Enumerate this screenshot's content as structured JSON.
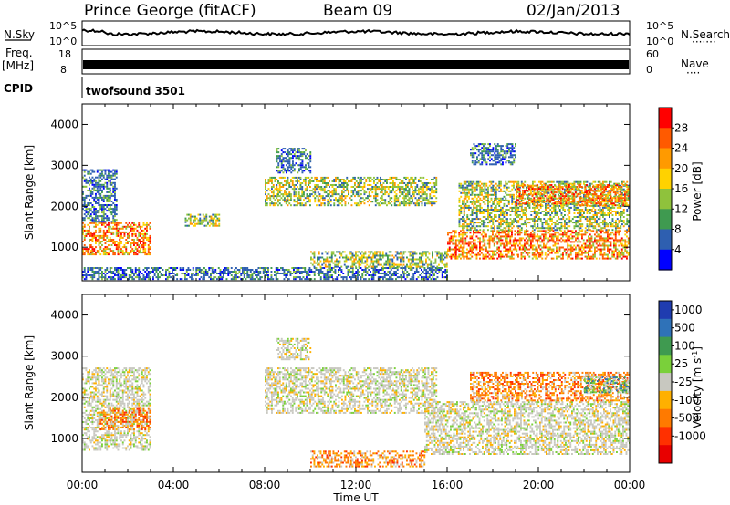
{
  "header": {
    "station": "Prince George (fitACF)",
    "beam": "Beam 09",
    "date": "02/Jan/2013"
  },
  "strips": {
    "nsky_label": "N.Sky",
    "nsearch_label": "N.Search",
    "nsearch_dots": "·······",
    "nsky_ticks": [
      "10^5",
      "10^0"
    ],
    "nsearch_ticks": [
      "10^5",
      "10^0"
    ],
    "freq_label_1": "Freq.",
    "freq_label_2": "[MHz]",
    "freq_ticks": [
      "18",
      "8"
    ],
    "nave_label": "Nave",
    "nave_dots": "····",
    "nave_ticks": [
      "60",
      "0"
    ],
    "cpid_label": "CPID",
    "cpid_value": "twofsound 3501"
  },
  "chart_data": [
    {
      "type": "heatmap",
      "panel": "power",
      "ylabel": "Slant Range [km]",
      "ylim": [
        180,
        4500
      ],
      "yticks": [
        "1000",
        "2000",
        "3000",
        "4000"
      ],
      "xlim": [
        "00:00",
        "24:00"
      ],
      "colorbar": {
        "label": "Power [dB]",
        "ticks": [
          "28",
          "24",
          "20",
          "16",
          "12",
          "8",
          "4"
        ],
        "colors": [
          "#ff0000",
          "#ff5a00",
          "#ff9a00",
          "#ffd200",
          "#8fc23c",
          "#3f9a50",
          "#2e5fb0",
          "#0000ff"
        ]
      },
      "regions": [
        {
          "t": [
            0.0,
            3.0
          ],
          "r": [
            800,
            1600
          ],
          "level": "high"
        },
        {
          "t": [
            0.0,
            1.5
          ],
          "r": [
            1600,
            2900
          ],
          "level": "low"
        },
        {
          "t": [
            0.0,
            16.0
          ],
          "r": [
            200,
            500
          ],
          "level": "low"
        },
        {
          "t": [
            4.5,
            6.0
          ],
          "r": [
            1500,
            1800
          ],
          "level": "mid"
        },
        {
          "t": [
            8.0,
            15.5
          ],
          "r": [
            2000,
            2700
          ],
          "level": "mid"
        },
        {
          "t": [
            8.5,
            10.0
          ],
          "r": [
            2800,
            3400
          ],
          "level": "low"
        },
        {
          "t": [
            10.0,
            16.0
          ],
          "r": [
            500,
            900
          ],
          "level": "mid"
        },
        {
          "t": [
            16.0,
            24.0
          ],
          "r": [
            700,
            1400
          ],
          "level": "high"
        },
        {
          "t": [
            16.5,
            24.0
          ],
          "r": [
            1400,
            2600
          ],
          "level": "mid"
        },
        {
          "t": [
            19.0,
            24.0
          ],
          "r": [
            2000,
            2500
          ],
          "level": "high"
        },
        {
          "t": [
            17.0,
            19.0
          ],
          "r": [
            3000,
            3500
          ],
          "level": "low"
        }
      ]
    },
    {
      "type": "heatmap",
      "panel": "velocity",
      "ylabel": "Slant Range [km]",
      "ylim": [
        180,
        4500
      ],
      "yticks": [
        "1000",
        "2000",
        "3000",
        "4000"
      ],
      "xlim": [
        "00:00",
        "24:00"
      ],
      "xticks": [
        "00:00",
        "04:00",
        "08:00",
        "12:00",
        "16:00",
        "20:00",
        "00:00"
      ],
      "xlabel": "Time UT",
      "colorbar": {
        "label": "Velocity [m s^-1]",
        "ticks": [
          "1000",
          "500",
          "100",
          "25",
          "-25",
          "-100",
          "-500",
          "-1000"
        ],
        "colors": [
          "#1f3cb0",
          "#2f72b8",
          "#3f9a50",
          "#7ad03a",
          "#c8c8c0",
          "#ffb000",
          "#ff7a00",
          "#ff3000",
          "#e80000"
        ]
      },
      "regions": [
        {
          "t": [
            0.0,
            3.0
          ],
          "r": [
            700,
            2700
          ],
          "level": "gray"
        },
        {
          "t": [
            0.7,
            3.0
          ],
          "r": [
            1200,
            1700
          ],
          "level": "orange"
        },
        {
          "t": [
            8.0,
            15.5
          ],
          "r": [
            1600,
            2700
          ],
          "level": "gray"
        },
        {
          "t": [
            8.5,
            10.0
          ],
          "r": [
            2900,
            3400
          ],
          "level": "gray"
        },
        {
          "t": [
            10.0,
            15.0
          ],
          "r": [
            300,
            700
          ],
          "level": "orange"
        },
        {
          "t": [
            15.0,
            24.0
          ],
          "r": [
            600,
            1900
          ],
          "level": "gray"
        },
        {
          "t": [
            17.0,
            24.0
          ],
          "r": [
            1900,
            2600
          ],
          "level": "orange"
        },
        {
          "t": [
            22.0,
            24.0
          ],
          "r": [
            2100,
            2500
          ],
          "level": "green"
        }
      ]
    }
  ]
}
